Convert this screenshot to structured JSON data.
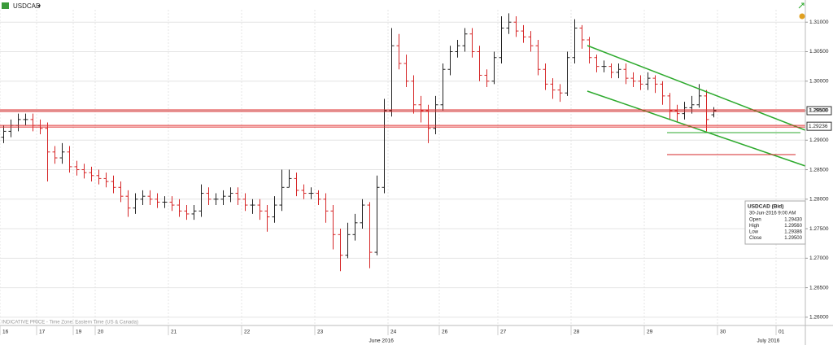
{
  "header": {
    "symbol": "USDCAD"
  },
  "footer": "INDICATIVE PRICE - Time Zone: Eastern Time (US & Canada)",
  "months": [
    "June 2016",
    "July 2016"
  ],
  "info_box": {
    "title": "USDCAD (Bid)",
    "time": "30-Jun-2016 9:00 AM",
    "rows": [
      [
        "Open",
        "1.29430"
      ],
      [
        "High",
        "1.29560"
      ],
      [
        "Low",
        "1.29386"
      ],
      [
        "Close",
        "1.29500"
      ]
    ]
  },
  "chart_data": {
    "type": "ohlc",
    "up_color": "#222222",
    "down_color": "#d62728",
    "categories": [
      "16",
      null,
      null,
      null,
      null,
      "17",
      null,
      null,
      null,
      null,
      "19",
      null,
      null,
      "20",
      null,
      null,
      null,
      null,
      null,
      null,
      null,
      null,
      null,
      "21",
      null,
      null,
      null,
      null,
      null,
      null,
      null,
      null,
      null,
      "22",
      null,
      null,
      null,
      null,
      null,
      null,
      null,
      null,
      null,
      "23",
      null,
      null,
      null,
      null,
      null,
      null,
      null,
      null,
      null,
      "24",
      null,
      null,
      null,
      null,
      null,
      null,
      "26",
      null,
      null,
      null,
      null,
      null,
      null,
      null,
      "27",
      null,
      null,
      null,
      null,
      null,
      null,
      null,
      null,
      null,
      "28",
      null,
      null,
      null,
      null,
      null,
      null,
      null,
      null,
      null,
      "29",
      null,
      null,
      null,
      null,
      null,
      null,
      null,
      null,
      null,
      "30",
      null,
      null,
      null,
      null,
      null,
      null,
      null,
      "01",
      null,
      null,
      null
    ],
    "open": [
      1.2905,
      1.2915,
      1.2925,
      1.2935,
      1.2935,
      1.2925,
      1.292,
      1.288,
      1.287,
      1.288,
      1.2855,
      1.285,
      1.2845,
      1.284,
      1.2835,
      1.283,
      1.282,
      1.2805,
      1.2785,
      1.28,
      1.2805,
      1.28,
      1.2795,
      1.2795,
      1.279,
      1.278,
      1.2775,
      1.278,
      1.281,
      1.28,
      1.28,
      1.2805,
      1.281,
      1.28,
      1.279,
      1.279,
      1.278,
      1.277,
      1.279,
      1.282,
      1.2835,
      1.2815,
      1.281,
      1.281,
      1.28,
      1.278,
      1.274,
      1.2705,
      1.274,
      1.276,
      1.279,
      1.271,
      1.282,
      1.295,
      1.306,
      1.303,
      1.3,
      1.296,
      1.295,
      1.292,
      1.296,
      1.302,
      1.305,
      1.306,
      1.308,
      1.305,
      1.301,
      1.3,
      1.304,
      1.309,
      1.31,
      1.3085,
      1.3075,
      1.306,
      1.302,
      1.2995,
      1.2985,
      1.298,
      1.304,
      1.309,
      1.307,
      1.304,
      1.3025,
      1.3025,
      1.3015,
      1.302,
      1.3005,
      1.3,
      1.2995,
      1.3005,
      1.2995,
      1.2975,
      1.295,
      1.2945,
      1.2955,
      1.296,
      1.2975,
      1.2943,
      null,
      null,
      null,
      null,
      null,
      null,
      null,
      null,
      null,
      null,
      null,
      null
    ],
    "high": [
      1.2925,
      1.2935,
      1.2945,
      1.2945,
      1.2945,
      1.2935,
      1.293,
      1.289,
      1.2895,
      1.289,
      1.2865,
      1.286,
      1.2855,
      1.285,
      1.2845,
      1.284,
      1.283,
      1.2815,
      1.281,
      1.2815,
      1.2815,
      1.281,
      1.2805,
      1.2805,
      1.28,
      1.279,
      1.279,
      1.2825,
      1.282,
      1.281,
      1.2815,
      1.282,
      1.282,
      1.281,
      1.28,
      1.28,
      1.279,
      1.2805,
      1.285,
      1.285,
      1.2845,
      1.2825,
      1.282,
      1.2815,
      1.281,
      1.279,
      1.275,
      1.276,
      1.2775,
      1.28,
      1.2795,
      1.284,
      1.297,
      1.309,
      1.308,
      1.3045,
      1.301,
      1.2975,
      1.296,
      1.2975,
      1.303,
      1.306,
      1.307,
      1.309,
      1.309,
      1.306,
      1.302,
      1.305,
      1.311,
      1.3115,
      1.311,
      1.3095,
      1.3085,
      1.307,
      1.303,
      1.3005,
      1.2995,
      1.305,
      1.3105,
      1.3095,
      1.3075,
      1.3045,
      1.3035,
      1.303,
      1.303,
      1.303,
      1.3015,
      1.301,
      1.3015,
      1.301,
      1.3,
      1.298,
      1.296,
      1.2965,
      1.2975,
      1.2995,
      1.2985,
      1.2956,
      null,
      null,
      null,
      null,
      null,
      null,
      null,
      null,
      null,
      null,
      null,
      null
    ],
    "low": [
      1.2895,
      1.2905,
      1.2915,
      1.2925,
      1.2915,
      1.291,
      1.283,
      1.286,
      1.286,
      1.2845,
      1.284,
      1.2835,
      1.283,
      1.2825,
      1.282,
      1.281,
      1.2795,
      1.277,
      1.2775,
      1.279,
      1.279,
      1.2785,
      1.2785,
      1.278,
      1.277,
      1.2765,
      1.2765,
      1.277,
      1.279,
      1.279,
      1.279,
      1.2795,
      1.279,
      1.278,
      1.2775,
      1.2765,
      1.2745,
      1.276,
      1.278,
      1.282,
      1.2805,
      1.28,
      1.28,
      1.279,
      1.276,
      1.2715,
      1.2678,
      1.27,
      1.273,
      1.275,
      1.2683,
      1.2705,
      1.281,
      1.294,
      1.302,
      1.299,
      1.2945,
      1.293,
      1.2895,
      1.291,
      1.295,
      1.301,
      1.304,
      1.305,
      1.304,
      1.3,
      1.299,
      1.2995,
      1.303,
      1.308,
      1.3075,
      1.3065,
      1.305,
      1.301,
      1.2985,
      1.297,
      1.2965,
      1.2975,
      1.303,
      1.3055,
      1.303,
      1.3015,
      1.3015,
      1.3005,
      1.3005,
      1.2995,
      1.299,
      1.2985,
      1.2985,
      1.298,
      1.296,
      1.2935,
      1.293,
      1.2935,
      1.2945,
      1.2955,
      1.2915,
      1.29386,
      null,
      null,
      null,
      null,
      null,
      null,
      null,
      null,
      null,
      null,
      null,
      null
    ],
    "close": [
      1.2915,
      1.2925,
      1.2935,
      1.2935,
      1.2925,
      1.292,
      1.288,
      1.287,
      1.288,
      1.2855,
      1.285,
      1.2845,
      1.284,
      1.2835,
      1.283,
      1.282,
      1.2805,
      1.2785,
      1.28,
      1.2805,
      1.28,
      1.2795,
      1.2795,
      1.279,
      1.278,
      1.2775,
      1.278,
      1.281,
      1.28,
      1.28,
      1.2805,
      1.281,
      1.28,
      1.279,
      1.279,
      1.278,
      1.277,
      1.279,
      1.282,
      1.2835,
      1.2815,
      1.281,
      1.281,
      1.28,
      1.278,
      1.274,
      1.2705,
      1.274,
      1.276,
      1.279,
      1.271,
      1.282,
      1.295,
      1.306,
      1.303,
      1.3,
      1.296,
      1.295,
      1.292,
      1.296,
      1.302,
      1.305,
      1.306,
      1.308,
      1.305,
      1.301,
      1.3,
      1.304,
      1.309,
      1.31,
      1.3085,
      1.3075,
      1.306,
      1.302,
      1.2995,
      1.2985,
      1.298,
      1.304,
      1.309,
      1.307,
      1.304,
      1.3025,
      1.3025,
      1.3015,
      1.302,
      1.3005,
      1.3,
      1.2995,
      1.3005,
      1.2995,
      1.2975,
      1.295,
      1.2945,
      1.2955,
      1.296,
      1.2975,
      1.2935,
      1.295,
      null,
      null,
      null,
      null,
      null,
      null,
      null,
      null,
      null,
      null,
      null,
      null
    ],
    "ylim": [
      1.2586,
      1.3121
    ],
    "yticks": [
      {
        "value": 1.26,
        "label": "1.26000"
      },
      {
        "value": 1.265,
        "label": "1.26500"
      },
      {
        "value": 1.27,
        "label": "1.27000"
      },
      {
        "value": 1.275,
        "label": "1.27500"
      },
      {
        "value": 1.28,
        "label": "1.28000"
      },
      {
        "value": 1.285,
        "label": "1.28500"
      },
      {
        "value": 1.29,
        "label": "1.29000"
      },
      {
        "value": 1.295,
        "label": "1.29500"
      },
      {
        "value": 1.3,
        "label": "1.30000"
      },
      {
        "value": 1.305,
        "label": "1.30500"
      },
      {
        "value": 1.31,
        "label": "1.31000"
      }
    ],
    "levels": [
      {
        "value": 1.295,
        "label": "1.29500"
      },
      {
        "value": 1.29236,
        "label": "1.29236"
      }
    ],
    "grid": true
  }
}
